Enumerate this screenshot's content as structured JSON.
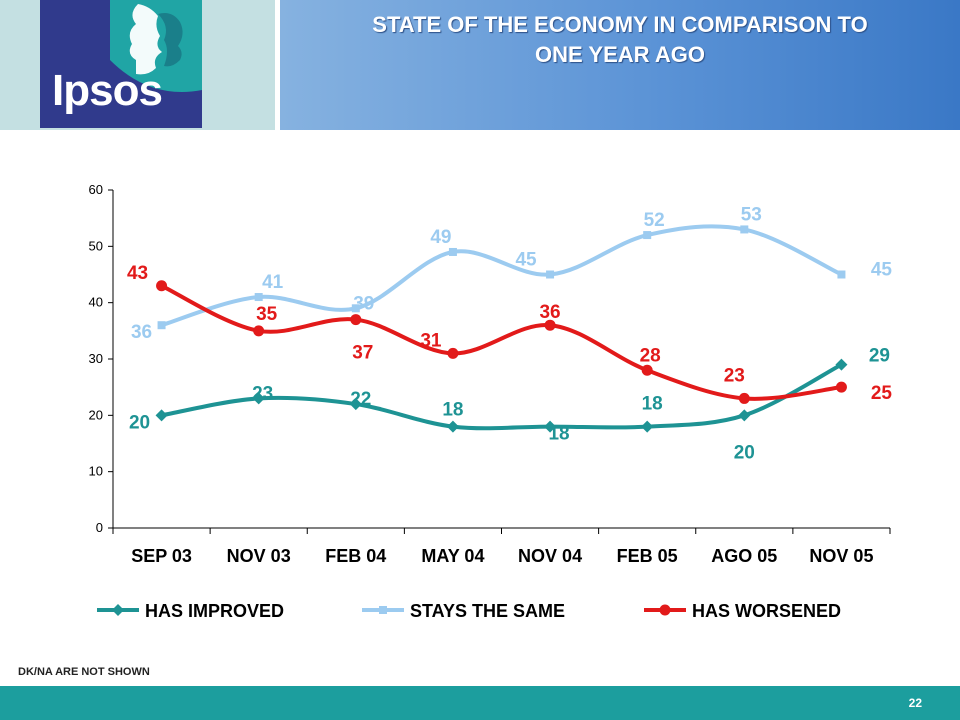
{
  "header": {
    "logo_text": "Ipsos",
    "title_line1": "STATE OF THE ECONOMY IN COMPARISON TO",
    "title_line2": "ONE YEAR AGO"
  },
  "footnote": "DK/NA ARE NOT SHOWN",
  "page_number": "22",
  "colors": {
    "improved": "#1e9394",
    "same": "#9ccbf0",
    "worsened": "#e21a1a",
    "title_bg": "#5b93d6",
    "footer_bg": "#1c9e9e"
  },
  "chart_data": {
    "type": "line",
    "categories": [
      "SEP 03",
      "NOV 03",
      "FEB 04",
      "MAY 04",
      "NOV 04",
      "FEB 05",
      "AGO 05",
      "NOV 05"
    ],
    "ylim": [
      0,
      60
    ],
    "yticks": [
      0,
      10,
      20,
      30,
      40,
      50,
      60
    ],
    "grid": false,
    "smooth": true,
    "legend_position": "bottom",
    "series": [
      {
        "key": "improved",
        "name": "HAS IMPROVED",
        "marker": "diamond",
        "values": [
          20,
          23,
          22,
          18,
          18,
          18,
          20,
          29
        ]
      },
      {
        "key": "same",
        "name": "STAYS THE SAME",
        "marker": "square",
        "values": [
          36,
          41,
          39,
          49,
          45,
          52,
          53,
          45
        ]
      },
      {
        "key": "worsened",
        "name": "HAS WORSENED",
        "marker": "circle",
        "values": [
          43,
          35,
          37,
          31,
          36,
          28,
          23,
          25
        ]
      }
    ]
  }
}
